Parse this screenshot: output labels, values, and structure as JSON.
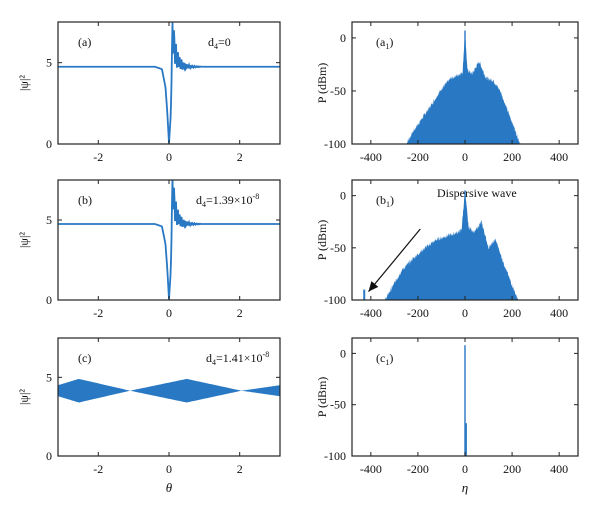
{
  "colors": {
    "series": "#2878c4",
    "axis": "#222222"
  },
  "chart_data": [
    {
      "id": "a",
      "type": "line",
      "panel_label": "(a)",
      "annotation": "d4=0",
      "annotation_parts": {
        "base": "d",
        "sub": "4",
        "rest": "=0",
        "sup": ""
      },
      "xlim": [
        -3.14,
        3.14
      ],
      "ylim": [
        0,
        7.5
      ],
      "xticks": [
        -2,
        0,
        2
      ],
      "xticklabels": [
        "-2",
        "0",
        "2"
      ],
      "yticks": [
        0,
        5
      ],
      "yticklabels": [
        "0",
        "5"
      ],
      "ylabel": "|ψ|²",
      "xlabel": "",
      "series": [
        {
          "kind": "soliton",
          "x": [
            -3.14,
            -0.4,
            -0.2,
            -0.1,
            -0.05,
            0.0,
            0.05,
            0.1,
            0.15,
            0.2,
            0.3,
            0.4,
            0.6,
            3.14
          ],
          "y": [
            4.75,
            4.75,
            4.6,
            3.5,
            2.0,
            0.05,
            1.8,
            6.6,
            6.0,
            5.4,
            5.0,
            4.8,
            4.75,
            4.75
          ]
        }
      ]
    },
    {
      "id": "a1",
      "type": "area",
      "panel_label": "(a1)",
      "xlim": [
        -480,
        480
      ],
      "ylim": [
        -100,
        15
      ],
      "xticks": [
        -400,
        -200,
        0,
        200,
        400
      ],
      "xticklabels": [
        "-400",
        "-200",
        "0",
        "200",
        "400"
      ],
      "yticks": [
        0,
        -50,
        -100
      ],
      "yticklabels": [
        "0",
        "-50",
        "-100"
      ],
      "ylabel": "P (dBm)",
      "xlabel": "",
      "series": [
        {
          "x": [
            -250,
            -220,
            -180,
            -140,
            -100,
            -60,
            -30,
            -10,
            0,
            10,
            30,
            60,
            90,
            120,
            150,
            180,
            210,
            235
          ],
          "y": [
            -100,
            -88,
            -75,
            -62,
            -48,
            -38,
            -35,
            -32,
            7,
            -30,
            -34,
            -22,
            -38,
            -40,
            -50,
            -68,
            -85,
            -100
          ]
        }
      ]
    },
    {
      "id": "b",
      "type": "line",
      "panel_label": "(b)",
      "annotation": "d4=1.39×10-8",
      "annotation_parts": {
        "base": "d",
        "sub": "4",
        "rest": "=1.39×10",
        "sup": "-8"
      },
      "xlim": [
        -3.14,
        3.14
      ],
      "ylim": [
        0,
        7.5
      ],
      "xticks": [
        -2,
        0,
        2
      ],
      "xticklabels": [
        "-2",
        "0",
        "2"
      ],
      "yticks": [
        0,
        5
      ],
      "yticklabels": [
        "0",
        "5"
      ],
      "ylabel": "|ψ|²",
      "xlabel": "",
      "series": [
        {
          "kind": "soliton",
          "x": [
            -3.14,
            -0.4,
            -0.2,
            -0.1,
            -0.05,
            0.0,
            0.05,
            0.1,
            0.15,
            0.2,
            0.3,
            0.4,
            0.6,
            3.14
          ],
          "y": [
            4.75,
            4.75,
            4.6,
            3.5,
            2.0,
            0.05,
            1.8,
            6.8,
            6.0,
            5.4,
            5.0,
            4.8,
            4.75,
            4.75
          ]
        }
      ]
    },
    {
      "id": "b1",
      "type": "area",
      "panel_label": "(b1)",
      "annotation": "Dispersive wave",
      "xlim": [
        -480,
        480
      ],
      "ylim": [
        -100,
        15
      ],
      "xticks": [
        -400,
        -200,
        0,
        200,
        400
      ],
      "xticklabels": [
        "-400",
        "-200",
        "0",
        "200",
        "400"
      ],
      "yticks": [
        0,
        -50,
        -100
      ],
      "yticklabels": [
        "0",
        "-50",
        "-100"
      ],
      "ylabel": "P (dBm)",
      "xlabel": "",
      "spike": {
        "x": -428,
        "y": -90
      },
      "arrow": {
        "from": [
          -190,
          -32
        ],
        "to": [
          -410,
          -92
        ]
      },
      "series": [
        {
          "x": [
            -340,
            -310,
            -270,
            -220,
            -170,
            -120,
            -70,
            -40,
            -15,
            0,
            15,
            40,
            70,
            100,
            130,
            160,
            190,
            225
          ],
          "y": [
            -100,
            -88,
            -72,
            -60,
            -50,
            -42,
            -38,
            -36,
            -33,
            5,
            -30,
            -35,
            -25,
            -50,
            -42,
            -62,
            -80,
            -100
          ]
        }
      ]
    },
    {
      "id": "c",
      "type": "area",
      "panel_label": "(c)",
      "annotation": "d4=1.41×10-8",
      "annotation_parts": {
        "base": "d",
        "sub": "4",
        "rest": "=1.41×10",
        "sup": "-8"
      },
      "xlim": [
        -3.14,
        3.14
      ],
      "ylim": [
        0,
        7.5
      ],
      "xticks": [
        -2,
        0,
        2
      ],
      "xticklabels": [
        "-2",
        "0",
        "2"
      ],
      "yticks": [
        0,
        5
      ],
      "yticklabels": [
        "0",
        "5"
      ],
      "ylabel": "|ψ|²",
      "xlabel": "θ",
      "series": [
        {
          "kind": "band",
          "x": [
            -3.14,
            -2.55,
            -1.1,
            0.5,
            2.05,
            3.14
          ],
          "upper": [
            4.5,
            4.9,
            4.15,
            4.9,
            4.15,
            4.5
          ],
          "lower": [
            3.8,
            3.4,
            4.15,
            3.4,
            4.15,
            3.8
          ]
        }
      ]
    },
    {
      "id": "c1",
      "type": "bar",
      "panel_label": "(c1)",
      "xlim": [
        -480,
        480
      ],
      "ylim": [
        -100,
        15
      ],
      "xticks": [
        -400,
        -200,
        0,
        200,
        400
      ],
      "xticklabels": [
        "-400",
        "-200",
        "0",
        "200",
        "400"
      ],
      "yticks": [
        0,
        -50,
        -100
      ],
      "yticklabels": [
        "0",
        "-50",
        "-100"
      ],
      "ylabel": "P (dBm)",
      "xlabel": "η",
      "series": [
        {
          "x": [
            0,
            3
          ],
          "y": [
            8,
            -68
          ]
        }
      ]
    }
  ]
}
